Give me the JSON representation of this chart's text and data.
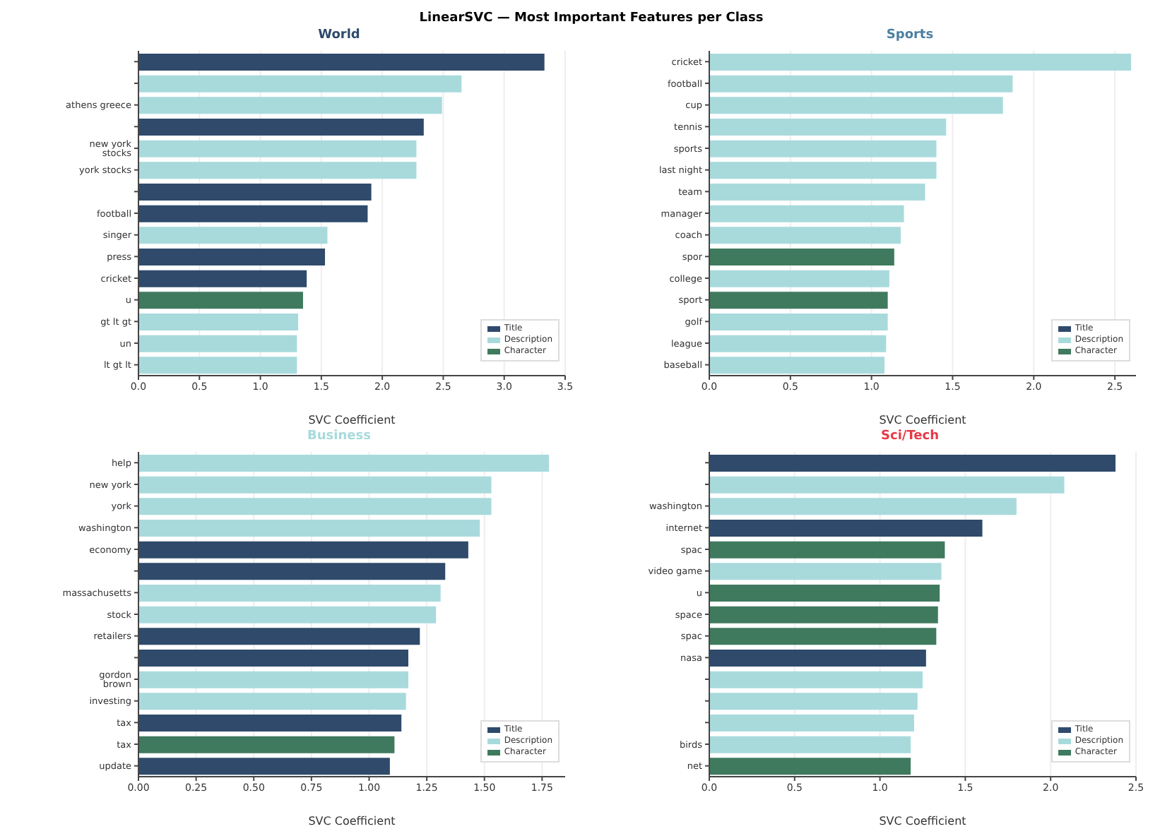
{
  "chart_data": [
    {
      "type": "bar",
      "orientation": "horizontal",
      "stacked": true,
      "title": "World",
      "annotations": [
        "LinearSVC — Most Important Features per Class"
      ],
      "xlabel": "SVC Coefficient",
      "categories": [
        null,
        null,
        "athens greece",
        null,
        "new york stocks",
        "york stocks",
        null,
        "football",
        "singer",
        "press",
        "cricket",
        "u",
        "gt lt gt",
        "un",
        "lt gt lt"
      ],
      "series": [
        {
          "name": "Title",
          "color": "#2f4a6b",
          "values": [
            3.33,
            null,
            null,
            2.34,
            null,
            null,
            1.91,
            1.88,
            null,
            1.53,
            1.38,
            null,
            null,
            null,
            null
          ]
        },
        {
          "name": "Description",
          "color": "#a8dadc",
          "values": [
            null,
            2.65,
            2.49,
            null,
            2.28,
            2.28,
            null,
            null,
            1.55,
            null,
            null,
            null,
            1.31,
            1.3,
            1.3
          ]
        },
        {
          "name": "Character",
          "color": "#3f7a5e",
          "values": [
            null,
            null,
            null,
            null,
            null,
            null,
            null,
            null,
            null,
            null,
            null,
            1.35,
            null,
            null,
            null
          ]
        }
      ],
      "xlim": [
        0,
        3.5
      ],
      "xticks": [
        {
          "value": 0,
          "label": "0.0"
        },
        0.5,
        {
          "value": 1,
          "label": "1.0"
        },
        1.5,
        {
          "value": 2,
          "label": "2.0"
        },
        2.5,
        {
          "value": 3,
          "label": "3.0"
        },
        3.5
      ],
      "grid": "x",
      "legend": "bottom right"
    },
    {
      "type": "bar",
      "orientation": "horizontal",
      "stacked": true,
      "title": "Sports",
      "xlabel": "SVC Coefficient",
      "categories": [
        "cricket",
        "football",
        "cup",
        "tennis",
        "sports",
        "last night",
        "team",
        "manager",
        "coach",
        "spor",
        "college",
        "sport",
        "golf",
        "league",
        "baseball"
      ],
      "series": [
        {
          "name": "Title",
          "color": "#2f4a6b",
          "values": [
            null,
            null,
            null,
            null,
            null,
            null,
            null,
            null,
            null,
            null,
            null,
            null,
            null,
            null,
            null
          ]
        },
        {
          "name": "Description",
          "color": "#a8dadc",
          "values": [
            2.6,
            1.87,
            1.81,
            1.46,
            1.4,
            1.4,
            1.33,
            1.2,
            1.18,
            null,
            1.11,
            null,
            1.1,
            1.09,
            1.08
          ]
        },
        {
          "name": "Character",
          "color": "#3f7a5e",
          "values": [
            null,
            null,
            null,
            null,
            null,
            null,
            null,
            null,
            null,
            1.14,
            null,
            1.1,
            null,
            null,
            null
          ]
        }
      ],
      "xlim": [
        0,
        2.63
      ],
      "xticks": [
        {
          "value": 0,
          "label": "0.0"
        },
        0.5,
        {
          "value": 1,
          "label": "1.0"
        },
        1.5,
        {
          "value": 2,
          "label": "2.0"
        },
        2.5
      ],
      "grid": "x",
      "legend": "bottom right"
    },
    {
      "type": "bar",
      "orientation": "horizontal",
      "stacked": true,
      "title": "Business",
      "xlabel": "SVC Coefficient",
      "categories": [
        "help",
        "new york",
        "york",
        "washington",
        "economy",
        null,
        "massachusetts",
        "stock",
        "retailers",
        null,
        "gordon brown",
        "investing",
        "tax",
        "tax",
        "update"
      ],
      "series": [
        {
          "name": "Title",
          "color": "#2f4a6b",
          "values": [
            null,
            null,
            null,
            null,
            1.43,
            1.33,
            null,
            null,
            1.22,
            1.17,
            null,
            null,
            1.14,
            null,
            1.09
          ]
        },
        {
          "name": "Description",
          "color": "#a8dadc",
          "values": [
            1.78,
            1.53,
            1.53,
            1.48,
            null,
            null,
            1.31,
            1.29,
            null,
            null,
            1.17,
            1.16,
            null,
            null,
            null
          ]
        },
        {
          "name": "Character",
          "color": "#3f7a5e",
          "values": [
            null,
            null,
            null,
            null,
            null,
            null,
            null,
            null,
            null,
            null,
            null,
            null,
            null,
            1.11,
            null
          ]
        }
      ],
      "xlim": [
        0,
        1.85
      ],
      "xticks": [
        {
          "value": 0,
          "label": "0.00"
        },
        {
          "value": 0.25,
          "label": "0.25"
        },
        {
          "value": 0.5,
          "label": "0.50"
        },
        {
          "value": 0.75,
          "label": "0.75"
        },
        {
          "value": 1,
          "label": "1.00"
        },
        {
          "value": 1.25,
          "label": "1.25"
        },
        {
          "value": 1.5,
          "label": "1.50"
        },
        {
          "value": 1.75,
          "label": "1.75"
        }
      ],
      "grid": "x",
      "legend": "bottom right"
    },
    {
      "type": "bar",
      "orientation": "horizontal",
      "stacked": true,
      "title": "Sci/Tech",
      "xlabel": "SVC Coefficient",
      "categories": [
        null,
        null,
        "washington",
        "internet",
        "spac",
        "video game",
        "u",
        "space",
        "spac",
        "nasa",
        null,
        null,
        null,
        "birds",
        "net"
      ],
      "series": [
        {
          "name": "Title",
          "color": "#2f4a6b",
          "values": [
            2.38,
            null,
            null,
            1.6,
            null,
            null,
            null,
            null,
            null,
            1.27,
            null,
            null,
            null,
            null,
            null
          ]
        },
        {
          "name": "Description",
          "color": "#a8dadc",
          "values": [
            null,
            2.08,
            1.8,
            null,
            null,
            1.36,
            null,
            null,
            null,
            null,
            1.25,
            1.22,
            1.2,
            1.18,
            null
          ]
        },
        {
          "name": "Character",
          "color": "#3f7a5e",
          "values": [
            null,
            null,
            null,
            null,
            1.38,
            null,
            1.35,
            1.34,
            1.33,
            null,
            null,
            null,
            null,
            null,
            1.18
          ]
        }
      ],
      "xlim": [
        0,
        2.5
      ],
      "xticks": [
        {
          "value": 0,
          "label": "0.0"
        },
        0.5,
        {
          "value": 1,
          "label": "1.0"
        },
        1.5,
        {
          "value": 2,
          "label": "2.0"
        },
        2.5
      ],
      "grid": "x",
      "legend": "bottom right"
    }
  ]
}
